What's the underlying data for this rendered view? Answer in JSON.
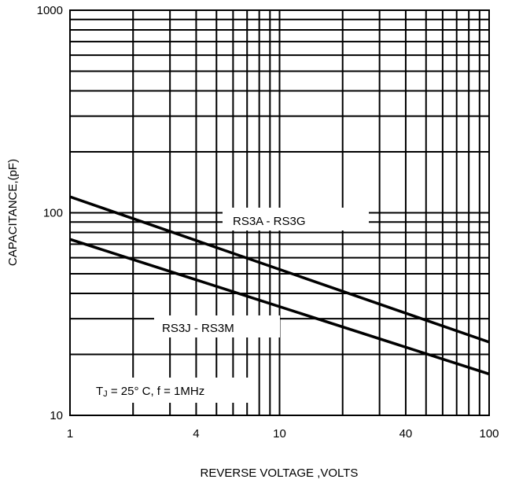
{
  "chart_data": {
    "type": "line",
    "title": "",
    "xlabel": "REVERSE VOLTAGE ,VOLTS",
    "ylabel": "CAPACITANCE,(pF)",
    "x_scale": "log",
    "y_scale": "log",
    "xlim": [
      1,
      100
    ],
    "ylim": [
      10,
      1000
    ],
    "x_ticks": [
      "1",
      "4",
      "10",
      "40",
      "100"
    ],
    "y_ticks": [
      "10",
      "100",
      "1000"
    ],
    "grid": true,
    "series": [
      {
        "name": "RS3A - RS3G",
        "x": [
          1,
          100
        ],
        "y": [
          120,
          23
        ]
      },
      {
        "name": "RS3J - RS3M",
        "x": [
          1,
          100
        ],
        "y": [
          74,
          16
        ]
      }
    ],
    "annotations": {
      "conditions_prefix": "T",
      "conditions_sub": "J",
      "conditions_rest": " = 25° C, f = 1MHz"
    }
  }
}
